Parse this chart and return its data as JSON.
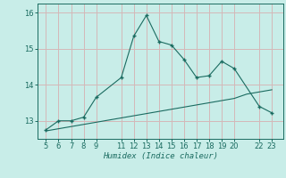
{
  "xlabel": "Humidex (Indice chaleur)",
  "bg_color": "#c8ede8",
  "grid_color": "#d4b8b8",
  "line_color": "#1a6b60",
  "x_main": [
    5,
    6,
    7,
    8,
    9,
    11,
    12,
    13,
    14,
    15,
    16,
    17,
    18,
    19,
    20,
    22,
    23
  ],
  "y_main": [
    12.75,
    13.0,
    13.0,
    13.1,
    13.65,
    14.2,
    15.35,
    15.92,
    15.2,
    15.1,
    14.7,
    14.2,
    14.25,
    14.65,
    14.45,
    13.4,
    13.22
  ],
  "x_ref": [
    5,
    6,
    7,
    8,
    9,
    10,
    11,
    12,
    13,
    14,
    15,
    16,
    17,
    18,
    19,
    20,
    21,
    22,
    23
  ],
  "y_ref": [
    12.72,
    12.78,
    12.84,
    12.9,
    12.96,
    13.02,
    13.08,
    13.14,
    13.2,
    13.26,
    13.32,
    13.38,
    13.44,
    13.5,
    13.56,
    13.62,
    13.74,
    13.8,
    13.86
  ],
  "ylim": [
    12.5,
    16.25
  ],
  "yticks": [
    13,
    14,
    15,
    16
  ],
  "xticks": [
    5,
    6,
    7,
    8,
    9,
    11,
    12,
    13,
    14,
    15,
    16,
    17,
    18,
    19,
    20,
    22,
    23
  ],
  "figsize": [
    3.2,
    2.0
  ],
  "dpi": 100
}
